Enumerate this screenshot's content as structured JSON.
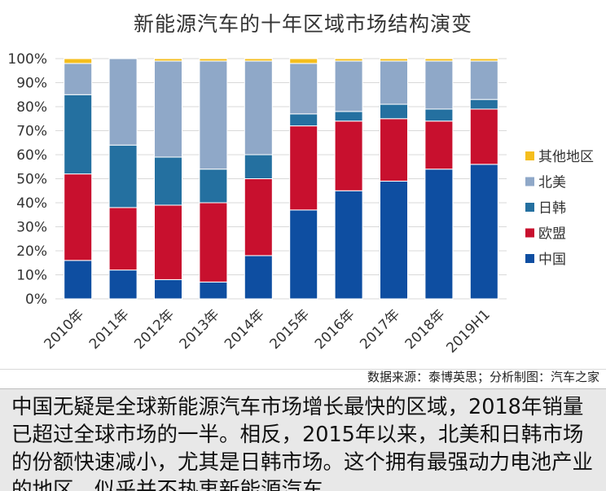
{
  "chart_data": {
    "type": "bar",
    "stacked": true,
    "percent": true,
    "title": "新能源汽车的十年区域市场结构演变",
    "categories": [
      "2010年",
      "2011年",
      "2012年",
      "2013年",
      "2014年",
      "2015年",
      "2016年",
      "2017年",
      "2018年",
      "2019H1"
    ],
    "y_ticks": [
      "0%",
      "10%",
      "20%",
      "30%",
      "40%",
      "50%",
      "60%",
      "70%",
      "80%",
      "90%",
      "100%"
    ],
    "ylim": [
      0,
      100
    ],
    "grid": true,
    "legend_position": "right",
    "series": [
      {
        "name": "中国",
        "color": "#0E4EA1",
        "values": [
          16,
          12,
          8,
          7,
          18,
          37,
          45,
          49,
          54,
          56
        ]
      },
      {
        "name": "欧盟",
        "color": "#C8102E",
        "values": [
          36,
          26,
          31,
          33,
          32,
          35,
          29,
          26,
          20,
          23
        ]
      },
      {
        "name": "日韩",
        "color": "#2470A0",
        "values": [
          33,
          26,
          20,
          14,
          10,
          5,
          4,
          6,
          5,
          4
        ]
      },
      {
        "name": "北美",
        "color": "#8FA8C8",
        "values": [
          13,
          36,
          40,
          45,
          39,
          21,
          21,
          18,
          20,
          16
        ]
      },
      {
        "name": "其他地区",
        "color": "#F5BE1D",
        "values": [
          2,
          0,
          1,
          1,
          1,
          2,
          1,
          1,
          1,
          1
        ]
      }
    ],
    "legend_order": [
      "其他地区",
      "北美",
      "日韩",
      "欧盟",
      "中国"
    ]
  },
  "source_note": "数据来源：泰博英思；分析制图：汽车之家",
  "caption": "中国无疑是全球新能源汽车市场增长最快的区域，2018年销量已超过全球市场的一半。相反，2015年以来，北美和日韩市场的份额快速减小，尤其是日韩市场。这个拥有最强动力电池产业的地区，似乎并不热衷新能源汽车"
}
